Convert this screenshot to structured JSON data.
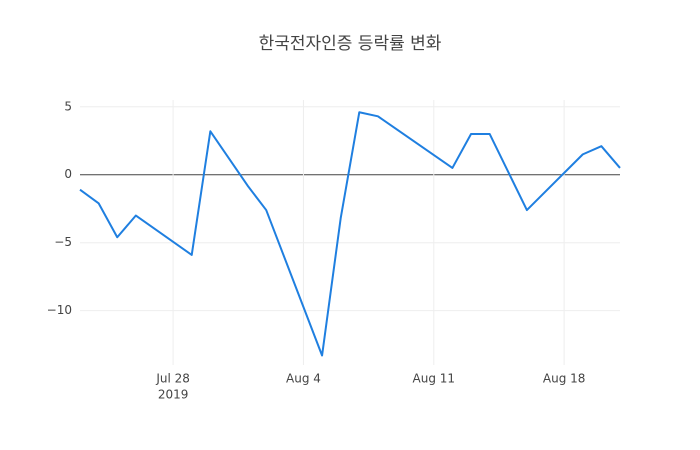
{
  "chart_data": {
    "type": "line",
    "title": "한국전자인증 등락률 변화",
    "x": [
      "2019-07-23",
      "2019-07-24",
      "2019-07-25",
      "2019-07-26",
      "2019-07-29",
      "2019-07-30",
      "2019-08-01",
      "2019-08-02",
      "2019-08-05",
      "2019-08-06",
      "2019-08-07",
      "2019-08-08",
      "2019-08-12",
      "2019-08-13",
      "2019-08-14",
      "2019-08-16",
      "2019-08-19",
      "2019-08-20",
      "2019-08-21"
    ],
    "series": [
      {
        "color": "#1f7fe0",
        "values": [
          -1.1,
          -2.1,
          -4.6,
          -3.0,
          -5.9,
          3.2,
          -0.8,
          -2.6,
          -13.3,
          -3.2,
          4.6,
          4.3,
          0.5,
          3.0,
          3.0,
          -2.6,
          1.5,
          2.1,
          0.5
        ]
      }
    ],
    "xlim": [
      "2019-07-23",
      "2019-08-21"
    ],
    "xticks": [
      {
        "value": "2019-07-28",
        "label": "Jul 28"
      },
      {
        "value": "2019-08-04",
        "label": "Aug 4"
      },
      {
        "value": "2019-08-11",
        "label": "Aug 11"
      },
      {
        "value": "2019-08-18",
        "label": "Aug 18"
      }
    ],
    "xtick_year": "2019",
    "ylim": [
      -14.0,
      5.5
    ],
    "yticks": [
      {
        "value": -10,
        "label": "−10"
      },
      {
        "value": -5,
        "label": "−5"
      },
      0,
      5
    ],
    "grid": true
  }
}
